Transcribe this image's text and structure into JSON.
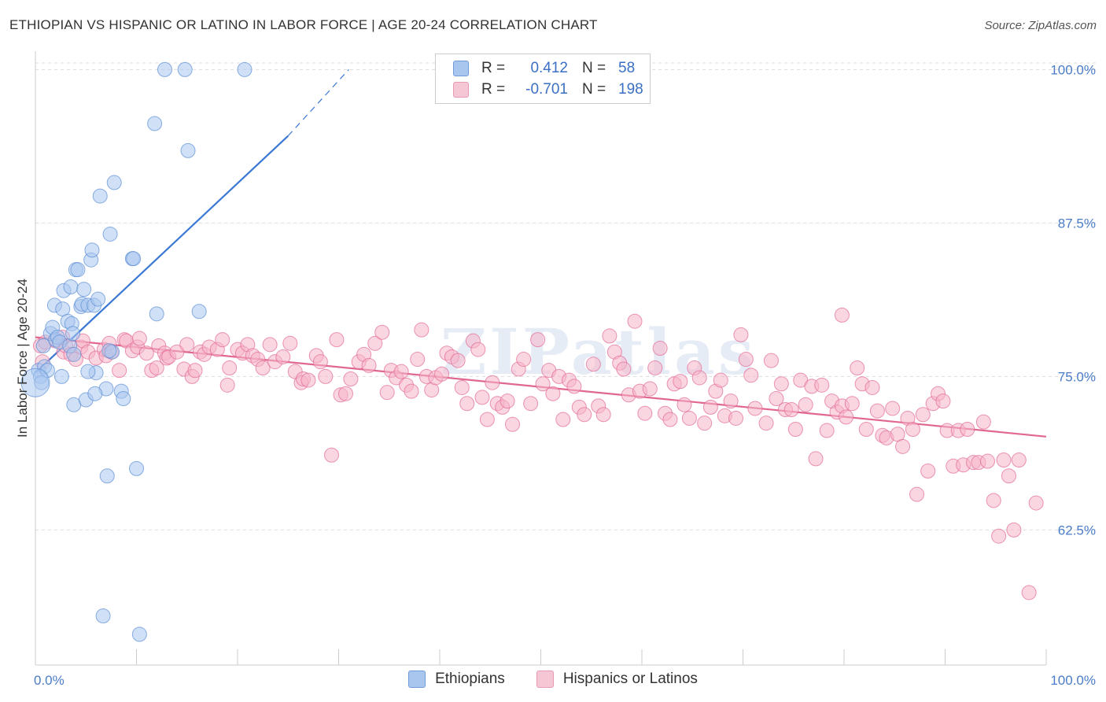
{
  "header": {
    "title": "ETHIOPIAN VS HISPANIC OR LATINO IN LABOR FORCE | AGE 20-24 CORRELATION CHART",
    "source": "Source: ZipAtlas.com"
  },
  "watermark": "ZIPatlas",
  "legend": {
    "rows": [
      {
        "r_label": "R =",
        "r_value": "0.412",
        "n_label": "N =",
        "n_value": "58",
        "color": "#a9c6ef"
      },
      {
        "r_label": "R =",
        "r_value": "-0.701",
        "n_label": "N =",
        "n_value": "198",
        "color": "#f5b5c8"
      }
    ]
  },
  "bottom_legend": {
    "items": [
      {
        "label": "Ethiopians",
        "color": "#a9c6ef"
      },
      {
        "label": "Hispanics or Latinos",
        "color": "#f5b5c8"
      }
    ]
  },
  "chart_data": {
    "type": "scatter",
    "ylabel": "In Labor Force | Age 20-24",
    "xlabel": "",
    "xlim": [
      0,
      100
    ],
    "ylim": [
      51.5,
      101.5
    ],
    "x_tick_labels": [
      "0.0%",
      "100.0%"
    ],
    "y_ticks": [
      62.5,
      75.0,
      87.5,
      100.0
    ],
    "y_tick_labels": [
      "62.5%",
      "75.0%",
      "87.5%",
      "100.0%"
    ],
    "grid": true,
    "legend_position": "top-center",
    "series": [
      {
        "name": "Ethiopians",
        "color": "#5b8fd6",
        "fill": "#a9c6ef",
        "trend": {
          "x0": 0,
          "y0": 75.3,
          "x1": 25,
          "y1": 94.6,
          "dash_to_x": 31,
          "dash_to_y": 100.0
        },
        "points": [
          [
            0.3,
            75.5
          ],
          [
            0.5,
            75.0
          ],
          [
            0.6,
            74.5
          ],
          [
            0.8,
            77.5
          ],
          [
            0.9,
            75.8
          ],
          [
            1.2,
            75.5
          ],
          [
            1.5,
            78.5
          ],
          [
            1.7,
            79.0
          ],
          [
            1.9,
            80.8
          ],
          [
            2.0,
            78.0
          ],
          [
            2.2,
            78.2
          ],
          [
            2.4,
            77.8
          ],
          [
            2.7,
            80.5
          ],
          [
            2.8,
            82.0
          ],
          [
            2.6,
            75.0
          ],
          [
            3.2,
            79.5
          ],
          [
            3.4,
            77.5
          ],
          [
            3.5,
            82.3
          ],
          [
            3.6,
            79.3
          ],
          [
            3.8,
            76.8
          ],
          [
            4.0,
            83.7
          ],
          [
            4.2,
            83.7
          ],
          [
            4.5,
            80.7
          ],
          [
            4.6,
            80.9
          ],
          [
            4.8,
            82.1
          ],
          [
            5.2,
            80.8
          ],
          [
            5.5,
            84.5
          ],
          [
            5.6,
            85.3
          ],
          [
            5.8,
            80.8
          ],
          [
            6.0,
            75.3
          ],
          [
            6.2,
            81.3
          ],
          [
            6.4,
            89.7
          ],
          [
            7.0,
            74.0
          ],
          [
            7.4,
            86.6
          ],
          [
            7.6,
            77.0
          ],
          [
            7.8,
            90.8
          ],
          [
            8.5,
            73.8
          ],
          [
            8.7,
            73.2
          ],
          [
            9.6,
            84.6
          ],
          [
            9.7,
            84.6
          ],
          [
            10.0,
            67.5
          ],
          [
            11.8,
            95.6
          ],
          [
            12.0,
            80.1
          ],
          [
            12.8,
            100.0
          ],
          [
            14.8,
            100.0
          ],
          [
            15.1,
            93.4
          ],
          [
            16.2,
            80.3
          ],
          [
            20.7,
            100.0
          ],
          [
            3.8,
            72.7
          ],
          [
            5.0,
            73.1
          ],
          [
            5.9,
            73.6
          ],
          [
            3.7,
            78.5
          ],
          [
            7.1,
            66.9
          ],
          [
            6.7,
            55.5
          ],
          [
            10.3,
            54.0
          ],
          [
            0.0,
            74.5
          ],
          [
            5.2,
            75.4
          ],
          [
            7.3,
            77.1
          ]
        ]
      },
      {
        "name": "Hispanics or Latinos",
        "color": "#e36a95",
        "fill": "#f5b5c8",
        "trend": {
          "x0": 0,
          "y0": 78.2,
          "x1": 100,
          "y1": 70.1
        },
        "points": [
          [
            0.5,
            77.5
          ],
          [
            0.7,
            76.2
          ],
          [
            1.0,
            77.8
          ],
          [
            2.0,
            77.9
          ],
          [
            2.7,
            78.2
          ],
          [
            2.8,
            77.0
          ],
          [
            3.0,
            77.5
          ],
          [
            3.5,
            76.8
          ],
          [
            4.0,
            76.4
          ],
          [
            4.5,
            77.4
          ],
          [
            4.7,
            77.9
          ],
          [
            5.2,
            77.0
          ],
          [
            6.0,
            76.5
          ],
          [
            6.8,
            77.2
          ],
          [
            7.0,
            76.7
          ],
          [
            7.3,
            77.7
          ],
          [
            7.5,
            77.0
          ],
          [
            8.3,
            75.5
          ],
          [
            8.8,
            78.0
          ],
          [
            9.0,
            77.9
          ],
          [
            9.6,
            77.1
          ],
          [
            10.1,
            77.4
          ],
          [
            10.3,
            78.1
          ],
          [
            11.0,
            76.9
          ],
          [
            11.5,
            75.5
          ],
          [
            12.0,
            75.7
          ],
          [
            12.2,
            77.5
          ],
          [
            12.8,
            76.9
          ],
          [
            13.0,
            76.5
          ],
          [
            13.2,
            76.6
          ],
          [
            14.0,
            77.0
          ],
          [
            14.7,
            75.6
          ],
          [
            15.0,
            77.6
          ],
          [
            15.5,
            75.0
          ],
          [
            15.8,
            75.5
          ],
          [
            16.3,
            77.0
          ],
          [
            16.7,
            76.8
          ],
          [
            17.2,
            77.4
          ],
          [
            18.0,
            77.2
          ],
          [
            18.5,
            78.0
          ],
          [
            19.0,
            74.3
          ],
          [
            19.2,
            75.7
          ],
          [
            20.0,
            77.2
          ],
          [
            20.5,
            76.9
          ],
          [
            21.0,
            77.6
          ],
          [
            21.5,
            76.7
          ],
          [
            22.0,
            76.4
          ],
          [
            22.5,
            75.7
          ],
          [
            23.2,
            77.6
          ],
          [
            23.7,
            76.2
          ],
          [
            24.5,
            76.6
          ],
          [
            25.2,
            77.7
          ],
          [
            25.7,
            75.4
          ],
          [
            26.3,
            74.5
          ],
          [
            26.5,
            74.8
          ],
          [
            27.0,
            74.7
          ],
          [
            27.8,
            76.7
          ],
          [
            28.2,
            76.2
          ],
          [
            28.7,
            75.0
          ],
          [
            29.3,
            68.6
          ],
          [
            29.8,
            78.0
          ],
          [
            30.2,
            73.5
          ],
          [
            30.7,
            73.6
          ],
          [
            31.2,
            74.8
          ],
          [
            32.0,
            76.2
          ],
          [
            32.5,
            76.8
          ],
          [
            33.0,
            75.9
          ],
          [
            33.6,
            77.7
          ],
          [
            34.3,
            78.6
          ],
          [
            34.8,
            73.7
          ],
          [
            35.2,
            75.5
          ],
          [
            35.7,
            74.9
          ],
          [
            36.2,
            75.4
          ],
          [
            36.7,
            74.3
          ],
          [
            37.2,
            73.8
          ],
          [
            37.8,
            76.4
          ],
          [
            38.2,
            78.8
          ],
          [
            38.7,
            75.0
          ],
          [
            39.2,
            73.9
          ],
          [
            39.6,
            74.9
          ],
          [
            40.2,
            75.2
          ],
          [
            40.7,
            76.9
          ],
          [
            41.2,
            76.6
          ],
          [
            41.8,
            76.3
          ],
          [
            42.2,
            74.1
          ],
          [
            42.7,
            72.8
          ],
          [
            43.3,
            77.9
          ],
          [
            43.8,
            77.2
          ],
          [
            44.2,
            73.3
          ],
          [
            44.7,
            71.5
          ],
          [
            45.2,
            74.5
          ],
          [
            45.7,
            72.8
          ],
          [
            46.2,
            72.5
          ],
          [
            46.7,
            73.0
          ],
          [
            47.2,
            71.1
          ],
          [
            47.8,
            75.6
          ],
          [
            48.3,
            76.4
          ],
          [
            49.0,
            72.8
          ],
          [
            49.7,
            78.0
          ],
          [
            50.2,
            74.4
          ],
          [
            50.8,
            75.5
          ],
          [
            51.2,
            73.6
          ],
          [
            51.8,
            75.0
          ],
          [
            52.2,
            71.5
          ],
          [
            52.8,
            74.7
          ],
          [
            53.3,
            74.2
          ],
          [
            53.8,
            72.5
          ],
          [
            54.3,
            71.9
          ],
          [
            55.2,
            76.0
          ],
          [
            55.7,
            72.6
          ],
          [
            56.2,
            71.9
          ],
          [
            56.8,
            78.3
          ],
          [
            57.3,
            77.0
          ],
          [
            57.8,
            76.1
          ],
          [
            58.2,
            75.6
          ],
          [
            58.7,
            73.5
          ],
          [
            59.3,
            79.5
          ],
          [
            59.8,
            73.8
          ],
          [
            60.3,
            72.0
          ],
          [
            60.8,
            74.0
          ],
          [
            61.3,
            75.7
          ],
          [
            61.8,
            77.3
          ],
          [
            62.3,
            72.0
          ],
          [
            62.8,
            71.5
          ],
          [
            63.2,
            74.4
          ],
          [
            63.8,
            74.6
          ],
          [
            64.2,
            72.7
          ],
          [
            64.7,
            71.6
          ],
          [
            65.2,
            75.7
          ],
          [
            65.7,
            74.9
          ],
          [
            66.2,
            71.2
          ],
          [
            66.8,
            72.5
          ],
          [
            67.3,
            73.8
          ],
          [
            67.8,
            74.7
          ],
          [
            68.2,
            71.8
          ],
          [
            68.8,
            73.0
          ],
          [
            69.3,
            71.6
          ],
          [
            69.8,
            78.4
          ],
          [
            70.3,
            76.4
          ],
          [
            70.8,
            75.1
          ],
          [
            71.2,
            72.4
          ],
          [
            72.3,
            71.2
          ],
          [
            72.8,
            76.3
          ],
          [
            73.3,
            73.2
          ],
          [
            73.8,
            74.4
          ],
          [
            74.2,
            72.3
          ],
          [
            74.8,
            72.3
          ],
          [
            75.2,
            70.7
          ],
          [
            75.7,
            74.7
          ],
          [
            76.2,
            72.7
          ],
          [
            76.8,
            74.2
          ],
          [
            77.2,
            68.3
          ],
          [
            77.8,
            74.3
          ],
          [
            78.3,
            70.6
          ],
          [
            78.8,
            73.0
          ],
          [
            79.3,
            72.1
          ],
          [
            79.8,
            72.6
          ],
          [
            80.2,
            71.7
          ],
          [
            80.8,
            72.8
          ],
          [
            81.3,
            75.7
          ],
          [
            81.8,
            74.4
          ],
          [
            82.2,
            70.7
          ],
          [
            82.8,
            74.1
          ],
          [
            83.3,
            72.2
          ],
          [
            83.8,
            70.2
          ],
          [
            84.2,
            70.0
          ],
          [
            84.8,
            72.4
          ],
          [
            85.3,
            70.3
          ],
          [
            85.8,
            69.3
          ],
          [
            86.3,
            71.6
          ],
          [
            86.8,
            70.7
          ],
          [
            87.2,
            65.4
          ],
          [
            87.8,
            71.9
          ],
          [
            88.3,
            67.3
          ],
          [
            88.8,
            72.8
          ],
          [
            89.3,
            73.6
          ],
          [
            89.8,
            73.0
          ],
          [
            90.2,
            70.6
          ],
          [
            90.8,
            67.7
          ],
          [
            91.3,
            70.6
          ],
          [
            91.8,
            67.8
          ],
          [
            92.2,
            70.7
          ],
          [
            92.8,
            68.0
          ],
          [
            93.3,
            68.0
          ],
          [
            93.8,
            71.3
          ],
          [
            94.2,
            68.1
          ],
          [
            94.8,
            64.9
          ],
          [
            95.3,
            62.0
          ],
          [
            95.8,
            68.2
          ],
          [
            96.3,
            66.9
          ],
          [
            96.8,
            62.5
          ],
          [
            97.3,
            68.2
          ],
          [
            98.3,
            57.4
          ],
          [
            99.0,
            64.7
          ],
          [
            79.8,
            80.0
          ]
        ]
      }
    ]
  }
}
